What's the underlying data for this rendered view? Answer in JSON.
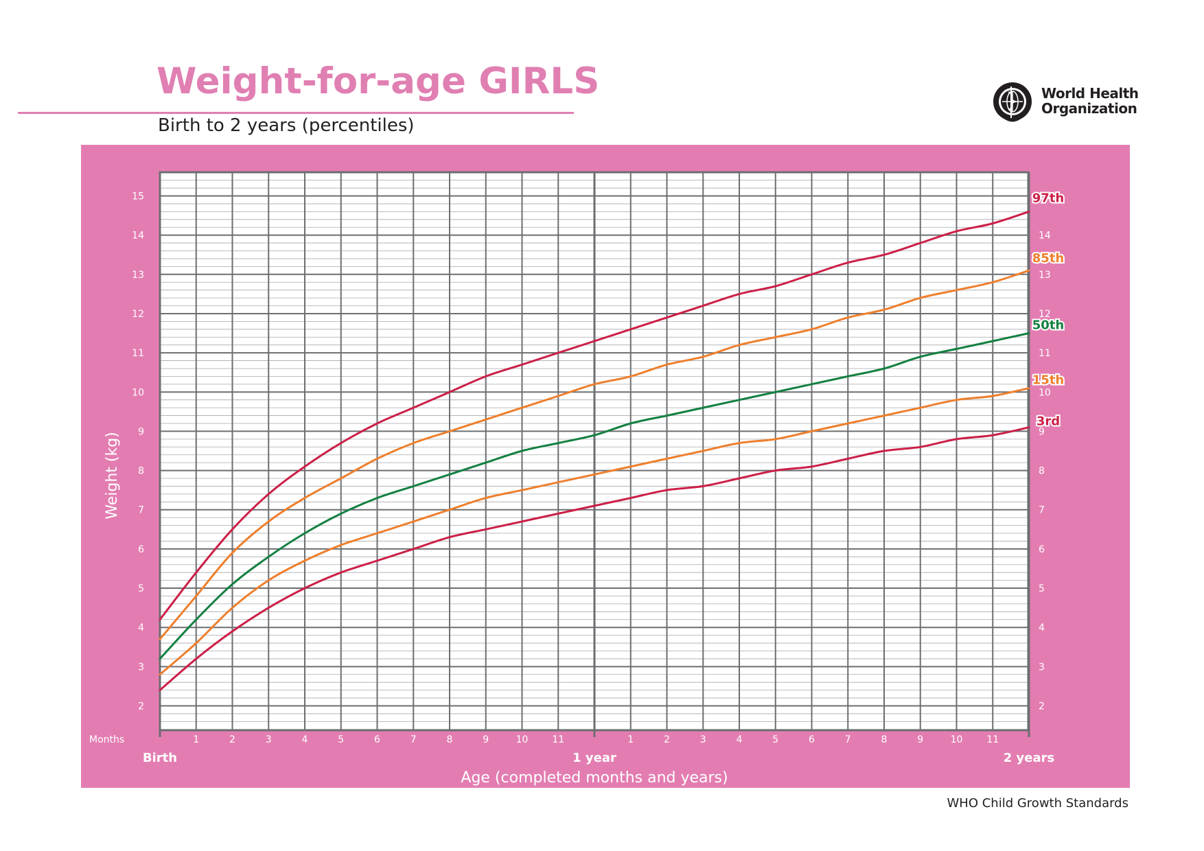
{
  "header": {
    "title": "Weight-for-age GIRLS",
    "subtitle": "Birth to 2 years (percentiles)"
  },
  "branding": {
    "org_line1": "World Health",
    "org_line2": "Organization"
  },
  "footer": {
    "text": "WHO Child Growth Standards"
  },
  "colors": {
    "panel": "#e37db1",
    "title": "#e07fb2",
    "grid_major": "#6d6e71",
    "grid_minor": "#a7a9ac",
    "p3_p97": "#cc1f48",
    "p15_p85": "#ee7f2d",
    "p50": "#138041"
  },
  "chart_data": {
    "type": "line",
    "title": "Weight-for-age GIRLS",
    "subtitle": "Birth to 2 years (percentiles)",
    "xlabel": "Age (completed months and years)",
    "ylabel": "Weight (kg)",
    "x_unit_label": "Months",
    "xlim": [
      0,
      24
    ],
    "ylim": [
      1.4,
      15.6
    ],
    "grid": true,
    "minor_grid_step_y": 0.2,
    "y_ticks": [
      2,
      3,
      4,
      5,
      6,
      7,
      8,
      9,
      10,
      11,
      12,
      13,
      14,
      15
    ],
    "y_tick_labels": [
      "2",
      "3",
      "4",
      "5",
      "6",
      "7",
      "8",
      "9",
      "10",
      "11",
      "12",
      "13",
      "14",
      "15"
    ],
    "x_month_ticks": [
      {
        "x": 1,
        "label": "1"
      },
      {
        "x": 2,
        "label": "2"
      },
      {
        "x": 3,
        "label": "3"
      },
      {
        "x": 4,
        "label": "4"
      },
      {
        "x": 5,
        "label": "5"
      },
      {
        "x": 6,
        "label": "6"
      },
      {
        "x": 7,
        "label": "7"
      },
      {
        "x": 8,
        "label": "8"
      },
      {
        "x": 9,
        "label": "9"
      },
      {
        "x": 10,
        "label": "10"
      },
      {
        "x": 11,
        "label": "11"
      },
      {
        "x": 13,
        "label": "1"
      },
      {
        "x": 14,
        "label": "2"
      },
      {
        "x": 15,
        "label": "3"
      },
      {
        "x": 16,
        "label": "4"
      },
      {
        "x": 17,
        "label": "5"
      },
      {
        "x": 18,
        "label": "6"
      },
      {
        "x": 19,
        "label": "7"
      },
      {
        "x": 20,
        "label": "8"
      },
      {
        "x": 21,
        "label": "9"
      },
      {
        "x": 22,
        "label": "10"
      },
      {
        "x": 23,
        "label": "11"
      }
    ],
    "x_year_ticks": [
      {
        "x": 0,
        "label": "Birth"
      },
      {
        "x": 12,
        "label": "1 year"
      },
      {
        "x": 24,
        "label": "2 years"
      }
    ],
    "x": [
      0,
      1,
      2,
      3,
      4,
      5,
      6,
      7,
      8,
      9,
      10,
      11,
      12,
      13,
      14,
      15,
      16,
      17,
      18,
      19,
      20,
      21,
      22,
      23,
      24
    ],
    "series": [
      {
        "name": "97th",
        "color": "#cc1f48",
        "values": [
          4.2,
          5.4,
          6.5,
          7.4,
          8.1,
          8.7,
          9.2,
          9.6,
          10.0,
          10.4,
          10.7,
          11.0,
          11.3,
          11.6,
          11.9,
          12.2,
          12.5,
          12.7,
          13.0,
          13.3,
          13.5,
          13.8,
          14.1,
          14.3,
          14.6
        ]
      },
      {
        "name": "85th",
        "color": "#ee7f2d",
        "values": [
          3.7,
          4.8,
          5.9,
          6.7,
          7.3,
          7.8,
          8.3,
          8.7,
          9.0,
          9.3,
          9.6,
          9.9,
          10.2,
          10.4,
          10.7,
          10.9,
          11.2,
          11.4,
          11.6,
          11.9,
          12.1,
          12.4,
          12.6,
          12.8,
          13.1
        ]
      },
      {
        "name": "50th",
        "color": "#138041",
        "values": [
          3.2,
          4.2,
          5.1,
          5.8,
          6.4,
          6.9,
          7.3,
          7.6,
          7.9,
          8.2,
          8.5,
          8.7,
          8.9,
          9.2,
          9.4,
          9.6,
          9.8,
          10.0,
          10.2,
          10.4,
          10.6,
          10.9,
          11.1,
          11.3,
          11.5
        ]
      },
      {
        "name": "15th",
        "color": "#ee7f2d",
        "values": [
          2.8,
          3.6,
          4.5,
          5.2,
          5.7,
          6.1,
          6.4,
          6.7,
          7.0,
          7.3,
          7.5,
          7.7,
          7.9,
          8.1,
          8.3,
          8.5,
          8.7,
          8.8,
          9.0,
          9.2,
          9.4,
          9.6,
          9.8,
          9.9,
          10.1
        ]
      },
      {
        "name": "3rd",
        "color": "#cc1f48",
        "values": [
          2.4,
          3.2,
          3.9,
          4.5,
          5.0,
          5.4,
          5.7,
          6.0,
          6.3,
          6.5,
          6.7,
          6.9,
          7.1,
          7.3,
          7.5,
          7.6,
          7.8,
          8.0,
          8.1,
          8.3,
          8.5,
          8.6,
          8.8,
          8.9,
          9.1
        ]
      }
    ]
  }
}
